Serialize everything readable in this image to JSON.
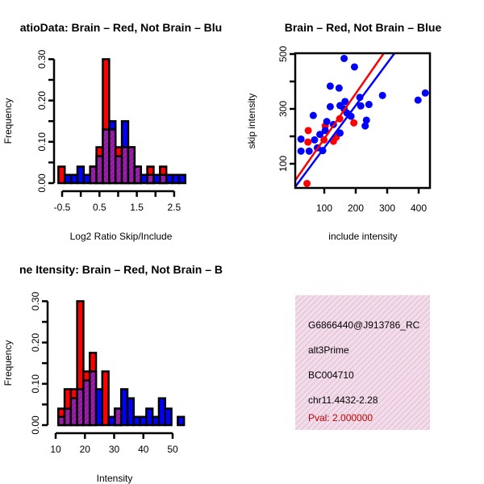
{
  "colors": {
    "red": "#ff0000",
    "blue": "#0000ff",
    "overlap": "#8b1a9b",
    "info_bg": "#f9d9f1",
    "pval": "#c00000"
  },
  "chart_data": [
    {
      "type": "bar",
      "title": "atioData: Brain – Red, Not Brain – Blu",
      "xlabel": "Log2 Ratio Skip/Include",
      "ylabel": "Frequency",
      "bin_start": -0.6,
      "bin_width": 0.17,
      "xlim": [
        -0.5,
        2.5
      ],
      "ylim": [
        0,
        0.3
      ],
      "xticks": [
        -0.5,
        0,
        0.5,
        1,
        1.5,
        2,
        2.5
      ],
      "xtick_labels": [
        "-0.5",
        "",
        "0.5",
        "",
        "1.5",
        "",
        "2.5"
      ],
      "yticks": [
        0,
        0.05,
        0.1,
        0.15,
        0.2,
        0.25,
        0.3
      ],
      "ytick_labels": [
        "0.00",
        "",
        "0.10",
        "",
        "0.20",
        "",
        "0.30"
      ],
      "series": [
        {
          "name": "Brain",
          "color": "red",
          "values": [
            0.04,
            0,
            0,
            0,
            0,
            0.04,
            0.087,
            0.3,
            0.13,
            0.087,
            0.087,
            0.087,
            0.04,
            0,
            0.04,
            0,
            0.04,
            0,
            0,
            0
          ]
        },
        {
          "name": "Not Brain",
          "color": "blue",
          "values": [
            0,
            0.02,
            0.02,
            0.04,
            0.02,
            0.04,
            0.065,
            0.13,
            0.15,
            0.065,
            0.15,
            0.087,
            0.04,
            0.02,
            0.02,
            0.02,
            0.02,
            0.02,
            0.02,
            0.02
          ]
        }
      ]
    },
    {
      "type": "scatter",
      "title": "Brain – Red, Not Brain – Blue",
      "xlabel": "include intensity",
      "ylabel": "skip intensity",
      "xlim": [
        8,
        436
      ],
      "ylim": [
        12,
        503
      ],
      "xticks": [
        100,
        200,
        300,
        400
      ],
      "xtick_labels": [
        "100",
        "200",
        "300",
        "400"
      ],
      "yticks": [
        100,
        200,
        300,
        400,
        500
      ],
      "ytick_labels": [
        "100",
        "",
        "300",
        "",
        "500"
      ],
      "series": [
        {
          "name": "Brain",
          "color": "red",
          "points": [
            [
              45,
              28
            ],
            [
              49,
              221
            ],
            [
              48,
              179
            ],
            [
              194,
              249
            ],
            [
              129,
              182
            ],
            [
              149,
              264
            ],
            [
              103,
              238
            ],
            [
              138,
              197
            ],
            [
              99,
              187
            ]
          ],
          "fit": {
            "slope": 1.645,
            "intercept": 27
          }
        },
        {
          "name": "Not Brain",
          "color": "blue",
          "points": [
            [
              163,
              484
            ],
            [
              196,
              453
            ],
            [
              119,
              383
            ],
            [
              147,
              376
            ],
            [
              285,
              349
            ],
            [
              398,
              332
            ],
            [
              421,
              358
            ],
            [
              166,
              327
            ],
            [
              213,
              342
            ],
            [
              242,
              316
            ],
            [
              216,
              311
            ],
            [
              119,
              308
            ],
            [
              150,
              312
            ],
            [
              65,
              276
            ],
            [
              185,
              273
            ],
            [
              234,
              259
            ],
            [
              230,
              238
            ],
            [
              108,
              254
            ],
            [
              129,
              243
            ],
            [
              150,
              212
            ],
            [
              86,
              207
            ],
            [
              69,
              187
            ],
            [
              26,
              190
            ],
            [
              26,
              146
            ],
            [
              52,
              146
            ],
            [
              78,
              158
            ],
            [
              95,
              148
            ],
            [
              103,
              221
            ],
            [
              163,
              300
            ],
            [
              172,
              285
            ]
          ],
          "fit": {
            "slope": 1.543,
            "intercept": 4
          }
        }
      ]
    },
    {
      "type": "bar",
      "title": "ne Itensity: Brain – Red, Not Brain – B",
      "xlabel": "Intensity",
      "ylabel": "Frequency",
      "bin_start": 10.9,
      "bin_width": 2.15,
      "xlim": [
        10,
        50
      ],
      "ylim": [
        0,
        0.3
      ],
      "xticks": [
        10,
        20,
        30,
        40,
        50
      ],
      "xtick_labels": [
        "10",
        "20",
        "30",
        "40",
        "50"
      ],
      "yticks": [
        0,
        0.05,
        0.1,
        0.15,
        0.2,
        0.25,
        0.3
      ],
      "ytick_labels": [
        "0.00",
        "",
        "0.10",
        "",
        "0.20",
        "",
        "0.30"
      ],
      "series": [
        {
          "name": "Brain",
          "color": "red",
          "values": [
            0.04,
            0.087,
            0.087,
            0.3,
            0.13,
            0.175,
            0,
            0.13,
            0,
            0.04,
            0,
            0,
            0,
            0,
            0,
            0,
            0,
            0,
            0,
            0
          ]
        },
        {
          "name": "Not Brain",
          "color": "blue",
          "values": [
            0.02,
            0.04,
            0.065,
            0.087,
            0.108,
            0.13,
            0.087,
            0,
            0.02,
            0.04,
            0.087,
            0.065,
            0.02,
            0.02,
            0.04,
            0.02,
            0.065,
            0.04,
            0,
            0.02
          ]
        }
      ]
    }
  ],
  "info": {
    "id": "G6866440@J913786_RC",
    "event_type": "alt3Prime",
    "accession": "BC004710",
    "location": "chr11.4432-2.28",
    "pval": "Pval: 2.000000"
  }
}
